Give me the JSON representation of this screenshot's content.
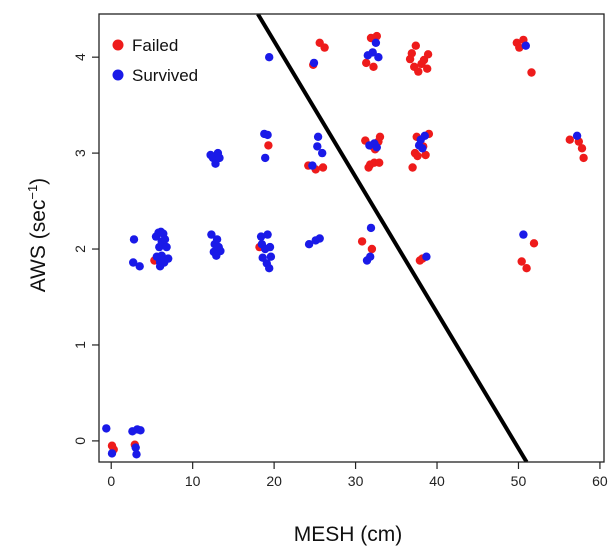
{
  "colors": {
    "failed": "#ee1b1b",
    "survived": "#1a1ae8",
    "line": "#000000",
    "axis": "#222222"
  },
  "chart_data": {
    "type": "scatter",
    "xlabel": "MESH (cm)",
    "ylabel": {
      "base": "AWS (sec",
      "sup": "−1",
      "close": ")"
    },
    "xlim": [
      -1.5,
      60.5
    ],
    "ylim": [
      -0.22,
      4.45
    ],
    "x_ticks": [
      0,
      10,
      20,
      30,
      40,
      50,
      60
    ],
    "y_ticks": [
      0,
      1,
      2,
      3,
      4
    ],
    "legend": {
      "position": "top-left",
      "items": [
        {
          "label": "Failed",
          "key": "failed"
        },
        {
          "label": "Survived",
          "key": "survived"
        }
      ]
    },
    "line": {
      "x1": 18.0,
      "y1": 4.45,
      "x2": 51.0,
      "y2": -0.22
    },
    "series": [
      {
        "name": "Failed",
        "key": "failed",
        "points": [
          [
            0.1,
            -0.05
          ],
          [
            0.3,
            -0.09
          ],
          [
            2.9,
            -0.04
          ],
          [
            5.3,
            1.88
          ],
          [
            18.2,
            2.02
          ],
          [
            19.3,
            3.08
          ],
          [
            24.2,
            2.87
          ],
          [
            24.8,
            3.92
          ],
          [
            25.1,
            2.83
          ],
          [
            25.6,
            4.15
          ],
          [
            26.0,
            2.85
          ],
          [
            26.2,
            4.1
          ],
          [
            30.8,
            2.08
          ],
          [
            31.2,
            3.13
          ],
          [
            31.3,
            3.94
          ],
          [
            31.6,
            2.85
          ],
          [
            31.8,
            2.88
          ],
          [
            31.9,
            4.2
          ],
          [
            32.0,
            2.0
          ],
          [
            32.1,
            3.07
          ],
          [
            32.2,
            3.9
          ],
          [
            32.3,
            2.9
          ],
          [
            32.4,
            3.04
          ],
          [
            32.6,
            4.22
          ],
          [
            32.8,
            3.12
          ],
          [
            32.9,
            2.9
          ],
          [
            33.0,
            3.17
          ],
          [
            36.7,
            3.98
          ],
          [
            36.9,
            4.04
          ],
          [
            37.0,
            2.85
          ],
          [
            37.2,
            3.9
          ],
          [
            37.3,
            3.0
          ],
          [
            37.4,
            4.12
          ],
          [
            37.5,
            3.17
          ],
          [
            37.6,
            2.97
          ],
          [
            37.7,
            3.85
          ],
          [
            37.9,
            1.88
          ],
          [
            38.1,
            3.93
          ],
          [
            38.2,
            1.9
          ],
          [
            38.3,
            3.07
          ],
          [
            38.4,
            3.97
          ],
          [
            38.6,
            2.98
          ],
          [
            38.8,
            3.88
          ],
          [
            38.9,
            4.03
          ],
          [
            39.0,
            3.2
          ],
          [
            49.8,
            4.15
          ],
          [
            50.1,
            4.1
          ],
          [
            50.4,
            1.87
          ],
          [
            50.6,
            4.18
          ],
          [
            51.0,
            1.8
          ],
          [
            51.6,
            3.84
          ],
          [
            51.9,
            2.06
          ],
          [
            56.3,
            3.14
          ],
          [
            57.4,
            3.12
          ],
          [
            57.8,
            3.05
          ],
          [
            58.0,
            2.95
          ]
        ]
      },
      {
        "name": "Survived",
        "key": "survived",
        "points": [
          [
            -0.6,
            0.13
          ],
          [
            0.1,
            -0.13
          ],
          [
            2.6,
            0.1
          ],
          [
            2.7,
            1.86
          ],
          [
            2.8,
            2.1
          ],
          [
            3.0,
            -0.07
          ],
          [
            3.1,
            -0.14
          ],
          [
            3.2,
            0.12
          ],
          [
            3.5,
            1.82
          ],
          [
            3.6,
            0.11
          ],
          [
            5.5,
            2.13
          ],
          [
            5.6,
            1.92
          ],
          [
            5.8,
            2.17
          ],
          [
            5.9,
            2.02
          ],
          [
            6.0,
            1.86
          ],
          [
            6.0,
            1.82
          ],
          [
            6.1,
            2.18
          ],
          [
            6.2,
            2.08
          ],
          [
            6.2,
            1.93
          ],
          [
            6.4,
            2.16
          ],
          [
            6.5,
            1.86
          ],
          [
            6.6,
            2.1
          ],
          [
            6.8,
            2.02
          ],
          [
            7.0,
            1.9
          ],
          [
            12.2,
            2.98
          ],
          [
            12.3,
            2.15
          ],
          [
            12.5,
            2.95
          ],
          [
            12.6,
            1.97
          ],
          [
            12.7,
            2.05
          ],
          [
            12.8,
            2.89
          ],
          [
            12.9,
            1.93
          ],
          [
            13.0,
            2.1
          ],
          [
            13.1,
            3.0
          ],
          [
            13.2,
            2.02
          ],
          [
            13.3,
            2.95
          ],
          [
            13.4,
            1.98
          ],
          [
            18.4,
            2.13
          ],
          [
            18.5,
            2.05
          ],
          [
            18.6,
            1.91
          ],
          [
            18.8,
            3.2
          ],
          [
            18.9,
            2.0
          ],
          [
            18.9,
            2.95
          ],
          [
            19.1,
            1.85
          ],
          [
            19.2,
            3.19
          ],
          [
            19.2,
            2.15
          ],
          [
            19.4,
            1.8
          ],
          [
            19.4,
            4.0
          ],
          [
            19.5,
            2.02
          ],
          [
            19.6,
            1.92
          ],
          [
            24.3,
            2.05
          ],
          [
            24.7,
            2.87
          ],
          [
            24.9,
            3.94
          ],
          [
            25.1,
            2.09
          ],
          [
            25.3,
            3.07
          ],
          [
            25.4,
            3.17
          ],
          [
            25.6,
            2.11
          ],
          [
            25.9,
            3.0
          ],
          [
            31.4,
            1.88
          ],
          [
            31.5,
            4.02
          ],
          [
            31.7,
            3.08
          ],
          [
            31.8,
            1.92
          ],
          [
            31.9,
            2.22
          ],
          [
            32.1,
            4.05
          ],
          [
            32.3,
            3.1
          ],
          [
            32.5,
            4.15
          ],
          [
            32.6,
            3.06
          ],
          [
            32.8,
            4.0
          ],
          [
            37.8,
            3.08
          ],
          [
            38.0,
            3.14
          ],
          [
            38.2,
            3.05
          ],
          [
            38.5,
            3.18
          ],
          [
            38.7,
            1.92
          ],
          [
            50.6,
            2.15
          ],
          [
            50.9,
            4.12
          ],
          [
            57.2,
            3.18
          ]
        ]
      }
    ]
  }
}
